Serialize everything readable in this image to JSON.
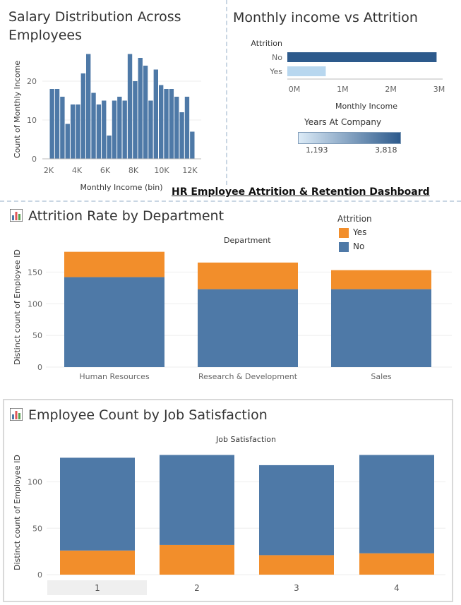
{
  "dashboard_title": "HR Employee Attrition & Retention Dashboard",
  "colors": {
    "blue": "#4e79a7",
    "orange": "#f28e2b",
    "dark_blue": "#2d5a8c",
    "light_blue": "#b8d7ef"
  },
  "chart_data": [
    {
      "id": "salary_hist",
      "type": "bar",
      "title": "Salary Distribution Across Employees",
      "xlabel": "Monthly Income (bin)",
      "ylabel": "Count of Monthly Income",
      "x_ticks": [
        "2K",
        "4K",
        "6K",
        "8K",
        "10K",
        "12K"
      ],
      "y_ticks": [
        "0",
        "10",
        "20"
      ],
      "ylim": [
        0,
        30
      ],
      "values": [
        18,
        18,
        16,
        9,
        14,
        14,
        22,
        27,
        17,
        14,
        15,
        6,
        15,
        16,
        15,
        27,
        20,
        26,
        24,
        15,
        23,
        19,
        18,
        18,
        16,
        12,
        16,
        7
      ]
    },
    {
      "id": "income_attrition",
      "type": "bar",
      "orientation": "horizontal",
      "title": "Monthly income vs Attrition",
      "category_label": "Attrition",
      "categories": [
        "No",
        "Yes"
      ],
      "values": [
        2950000,
        760000
      ],
      "xlabel": "Monthly Income",
      "x_ticks": [
        "0M",
        "1M",
        "2M",
        "3M"
      ],
      "xlim": [
        0,
        3000000
      ],
      "color_legend": {
        "title": "Years At Company",
        "min_label": "1,193",
        "max_label": "3,818"
      }
    },
    {
      "id": "attrition_by_department",
      "type": "bar",
      "stacked": true,
      "title": "Attrition Rate by Department",
      "column_header": "Department",
      "categories": [
        "Human Resources",
        "Research & Development",
        "Sales"
      ],
      "series": [
        {
          "name": "No",
          "values": [
            142,
            123,
            123
          ]
        },
        {
          "name": "Yes",
          "values": [
            40,
            42,
            30
          ]
        }
      ],
      "ylabel": "Distinct count of Employee ID",
      "y_ticks": [
        "0",
        "50",
        "100",
        "150"
      ],
      "ylim": [
        0,
        195
      ],
      "legend": {
        "title": "Attrition",
        "items": [
          "Yes",
          "No"
        ],
        "placement": "top-right"
      }
    },
    {
      "id": "count_by_job_satisfaction",
      "type": "bar",
      "stacked": true,
      "title": "Employee Count by Job Satisfaction",
      "column_header": "Job Satisfaction",
      "categories": [
        "1",
        "2",
        "3",
        "4"
      ],
      "series": [
        {
          "name": "No",
          "values": [
            100,
            97,
            97,
            106
          ]
        },
        {
          "name": "Yes",
          "values": [
            26,
            32,
            21,
            23
          ]
        }
      ],
      "ylabel": "Distinct count of Employee ID",
      "y_ticks": [
        "0",
        "50",
        "100"
      ],
      "ylim": [
        0,
        140
      ]
    }
  ]
}
